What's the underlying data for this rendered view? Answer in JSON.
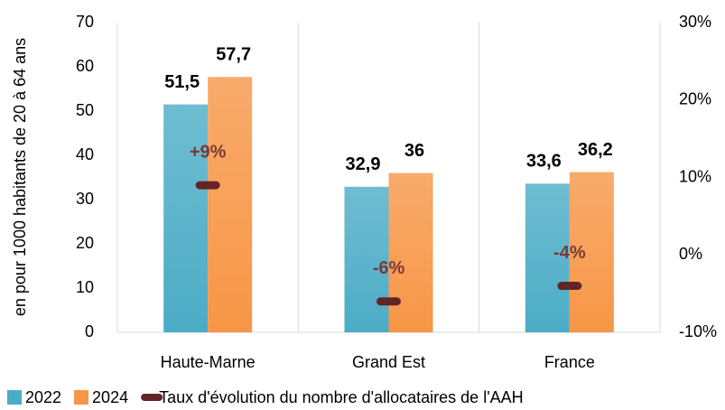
{
  "chart_data": {
    "type": "bar",
    "categories": [
      "Haute-Marne",
      "Grand Est",
      "France"
    ],
    "series": [
      {
        "name": "2022",
        "color": "#4bacc6",
        "values": [
          51.5,
          32.9,
          33.6
        ],
        "value_labels": [
          "51,5",
          "32,9",
          "33,6"
        ]
      },
      {
        "name": "2024",
        "color": "#f79646",
        "values": [
          57.7,
          36,
          36.2
        ],
        "value_labels": [
          "57,7",
          "36",
          "36,2"
        ]
      },
      {
        "name": "Taux d'évolution du nombre d'allocataires de l'AAH",
        "type": "marker",
        "axis": "y2",
        "color": "#632523",
        "values": [
          9,
          -6,
          -4
        ],
        "value_labels": [
          "+9%",
          "-6%",
          "-4%"
        ]
      }
    ],
    "ylabel": "en pour 1000 habitants de 20 à 64 ans",
    "ylim": [
      0,
      70
    ],
    "yticks": [
      0,
      10,
      20,
      30,
      40,
      50,
      60,
      70
    ],
    "y2lim": [
      -10,
      30
    ],
    "y2ticks": [
      {
        "value": -10,
        "label": "-10%"
      },
      {
        "value": 0,
        "label": "0%"
      },
      {
        "value": 10,
        "label": "10%"
      },
      {
        "value": 20,
        "label": "20%"
      },
      {
        "value": 30,
        "label": "30%"
      }
    ],
    "grid": true
  }
}
